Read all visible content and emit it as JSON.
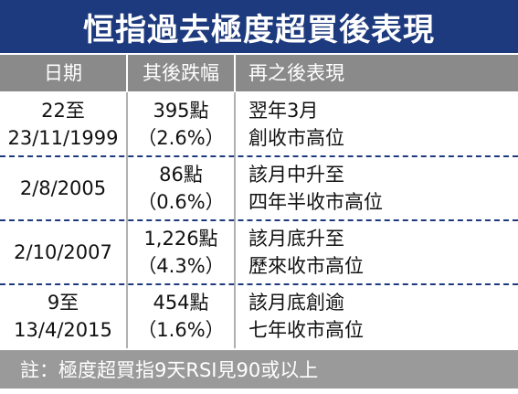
{
  "title": "恒指過去極度超買後表現",
  "table": {
    "header": [
      "日期",
      "其後跌幅",
      "再之後表現"
    ],
    "rows": [
      [
        [
          "22至",
          "23/11/1999"
        ],
        [
          "395點",
          "（2.6%）"
        ],
        [
          "翌年3月",
          "創收市高位"
        ]
      ],
      [
        [
          "2/8/2005"
        ],
        [
          "86點",
          "（0.6%）"
        ],
        [
          "該月中升至",
          "四年半收市高位"
        ]
      ],
      [
        [
          "2/10/2007"
        ],
        [
          "1,226點",
          "（4.3%）"
        ],
        [
          "該月底升至",
          "歷來收市高位"
        ]
      ],
      [
        [
          "9至",
          "13/4/2015"
        ],
        [
          "454點",
          "（1.6%）"
        ],
        [
          "該月底創逾",
          "七年收市高位"
        ]
      ]
    ]
  },
  "footnote": "註：極度超買指9天RSI見90或以上"
}
